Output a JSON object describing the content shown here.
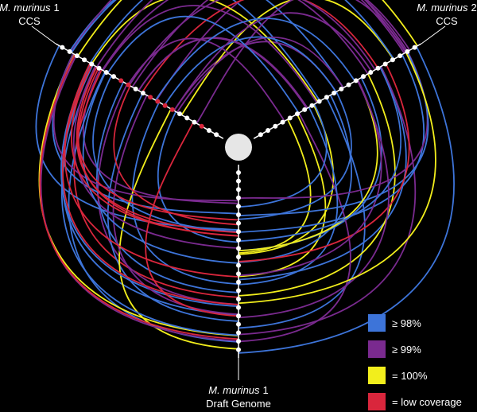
{
  "axes": [
    {
      "name": "M. murinus",
      "index": "1",
      "sub": "CCS"
    },
    {
      "name": "M. murinus",
      "index": "2",
      "sub": "CCS"
    },
    {
      "name": "M. murinus",
      "index": "1",
      "sub": "Draft Genome"
    }
  ],
  "legend": [
    {
      "label": "≥ 98%",
      "color": "#3d74d9"
    },
    {
      "label": "≥ 99%",
      "color": "#7a2a8f"
    },
    {
      "label": "= 100%",
      "color": "#f2ee1c"
    },
    {
      "label": "= low coverage",
      "color": "#d9263c"
    }
  ]
}
